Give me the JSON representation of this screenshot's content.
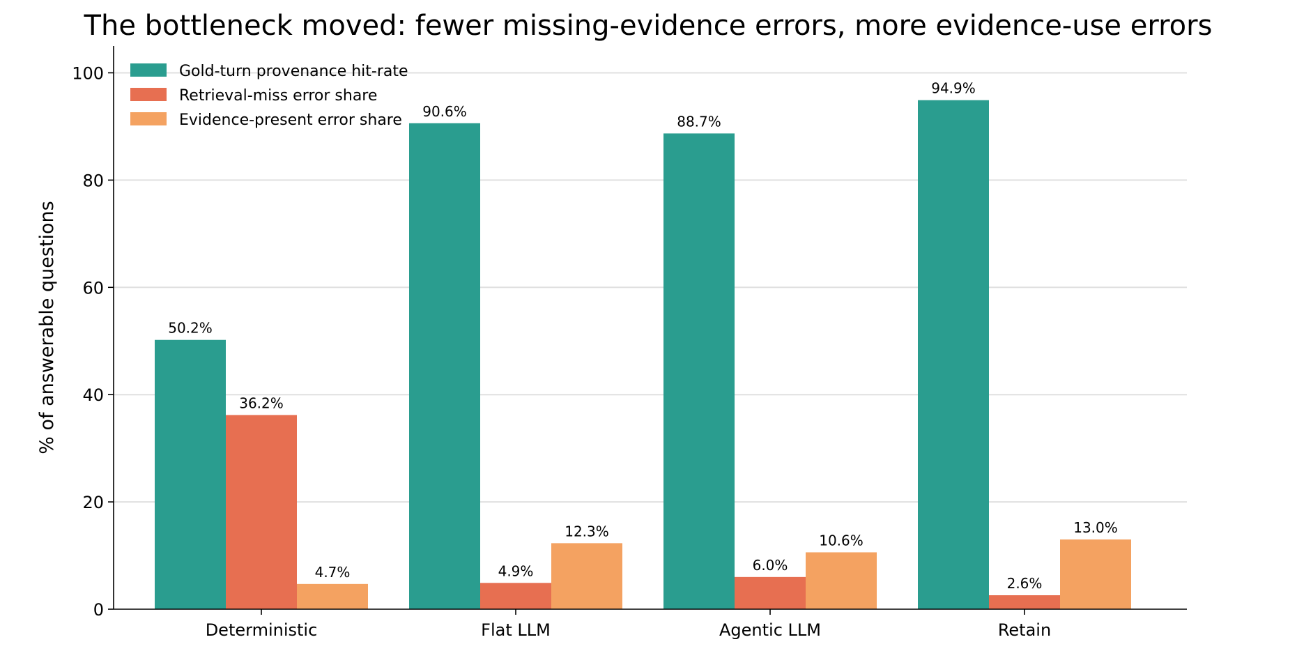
{
  "chart_data": {
    "type": "bar",
    "title": "The bottleneck moved: fewer missing-evidence errors, more evidence-use errors",
    "xlabel": "",
    "ylabel": "% of answerable questions",
    "categories": [
      "Deterministic",
      "Flat LLM",
      "Agentic LLM",
      "Retain"
    ],
    "series": [
      {
        "name": "Gold-turn provenance hit-rate",
        "color": "#2a9d8f",
        "values": [
          50.2,
          90.6,
          88.7,
          94.9
        ],
        "labels": [
          "50.2%",
          "90.6%",
          "88.7%",
          "94.9%"
        ]
      },
      {
        "name": "Retrieval-miss error share",
        "color": "#e76f51",
        "values": [
          36.2,
          4.9,
          6.0,
          2.6
        ],
        "labels": [
          "36.2%",
          "4.9%",
          "6.0%",
          "2.6%"
        ]
      },
      {
        "name": "Evidence-present error share",
        "color": "#f4a261",
        "values": [
          4.7,
          12.3,
          10.6,
          13.0
        ],
        "labels": [
          "4.7%",
          "12.3%",
          "10.6%",
          "13.0%"
        ]
      }
    ],
    "ylim": [
      0,
      100
    ],
    "yticks": [
      0,
      20,
      40,
      60,
      80,
      100
    ],
    "grid": true,
    "legend_position": "top-left"
  }
}
